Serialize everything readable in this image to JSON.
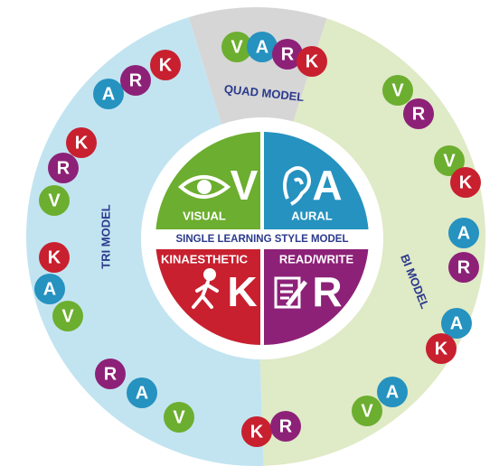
{
  "center": {
    "title": "SINGLE LEARNING STYLE MODEL",
    "quadrants": [
      {
        "letter": "V",
        "label": "VISUAL",
        "color": "#6cae2f"
      },
      {
        "letter": "A",
        "label": "AURAL",
        "color": "#2592c0"
      },
      {
        "letter": "K",
        "label": "KINAESTHETIC",
        "color": "#c8202f"
      },
      {
        "letter": "R",
        "label": "READ/WRITE",
        "color": "#8d2178"
      }
    ]
  },
  "models": [
    {
      "label": "QUAD MODEL",
      "color": "#d6d6d6"
    },
    {
      "label": "TRI MODEL",
      "color": "#c2e4f0"
    },
    {
      "label": "BI MODEL",
      "color": "#dfeac6"
    }
  ],
  "bubbles": [
    {
      "letters": [
        "V",
        "A",
        "R",
        "K"
      ],
      "colors": [
        "#6cae2f",
        "#2592c0",
        "#8d2178",
        "#c8202f"
      ]
    },
    {
      "letters": [
        "A",
        "R",
        "K"
      ],
      "colors": [
        "#2592c0",
        "#8d2178",
        "#c8202f"
      ]
    },
    {
      "letters": [
        "K",
        "R",
        "V"
      ],
      "colors": [
        "#c8202f",
        "#8d2178",
        "#6cae2f"
      ]
    },
    {
      "letters": [
        "K",
        "A",
        "V"
      ],
      "colors": [
        "#c8202f",
        "#2592c0",
        "#6cae2f"
      ]
    },
    {
      "letters": [
        "R",
        "A",
        "V"
      ],
      "colors": [
        "#8d2178",
        "#2592c0",
        "#6cae2f"
      ]
    },
    {
      "letters": [
        "V",
        "R"
      ],
      "colors": [
        "#6cae2f",
        "#8d2178"
      ]
    },
    {
      "letters": [
        "V",
        "K"
      ],
      "colors": [
        "#6cae2f",
        "#c8202f"
      ]
    },
    {
      "letters": [
        "A",
        "R"
      ],
      "colors": [
        "#2592c0",
        "#8d2178"
      ]
    },
    {
      "letters": [
        "A",
        "K"
      ],
      "colors": [
        "#2592c0",
        "#c8202f"
      ]
    },
    {
      "letters": [
        "V",
        "A"
      ],
      "colors": [
        "#6cae2f",
        "#2592c0"
      ]
    },
    {
      "letters": [
        "K",
        "R"
      ],
      "colors": [
        "#c8202f",
        "#8d2178"
      ]
    }
  ]
}
